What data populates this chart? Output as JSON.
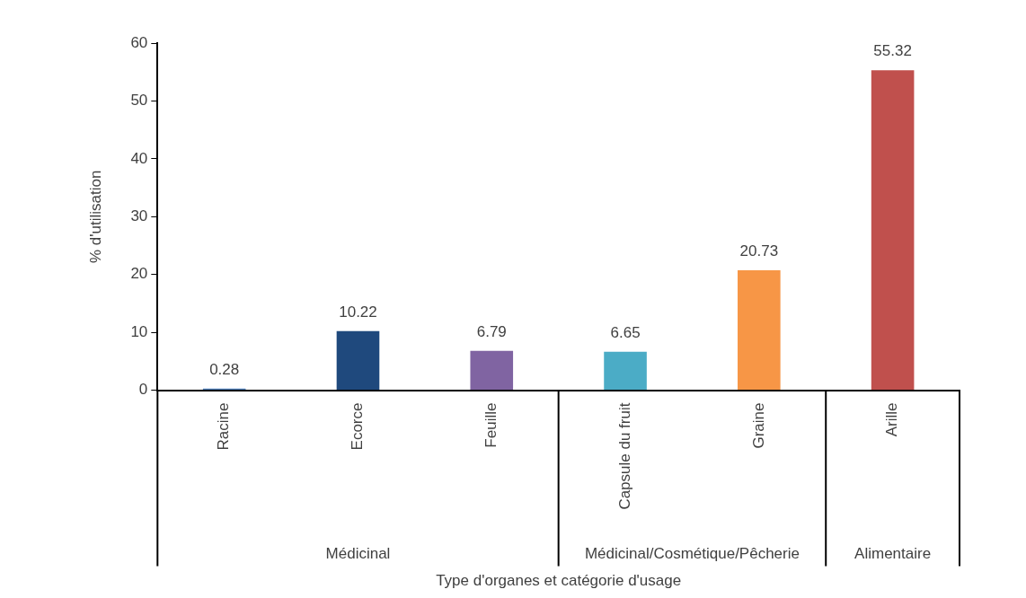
{
  "chart_data": {
    "type": "bar",
    "xlabel": "Type d'organes et catégorie d'usage",
    "ylabel": "% d'utilisation",
    "categories": [
      "Racine",
      "Ecorce",
      "Feuille",
      "Capsule du fruit",
      "Graine",
      "Arille"
    ],
    "values": [
      0.28,
      10.22,
      6.79,
      6.65,
      20.73,
      55.32
    ],
    "colors": [
      "#4f81bd",
      "#1f497d",
      "#8064a2",
      "#4bacc6",
      "#f79646",
      "#c0504d"
    ],
    "ylim": [
      0,
      60
    ],
    "yticks": [
      0,
      10,
      20,
      30,
      40,
      50,
      60
    ],
    "grid": false,
    "legend": false,
    "data_labels": true,
    "annotations": [
      "Médicinal",
      "Médicinal/Cosmétique/Pêcherie",
      "Alimentaire"
    ]
  }
}
